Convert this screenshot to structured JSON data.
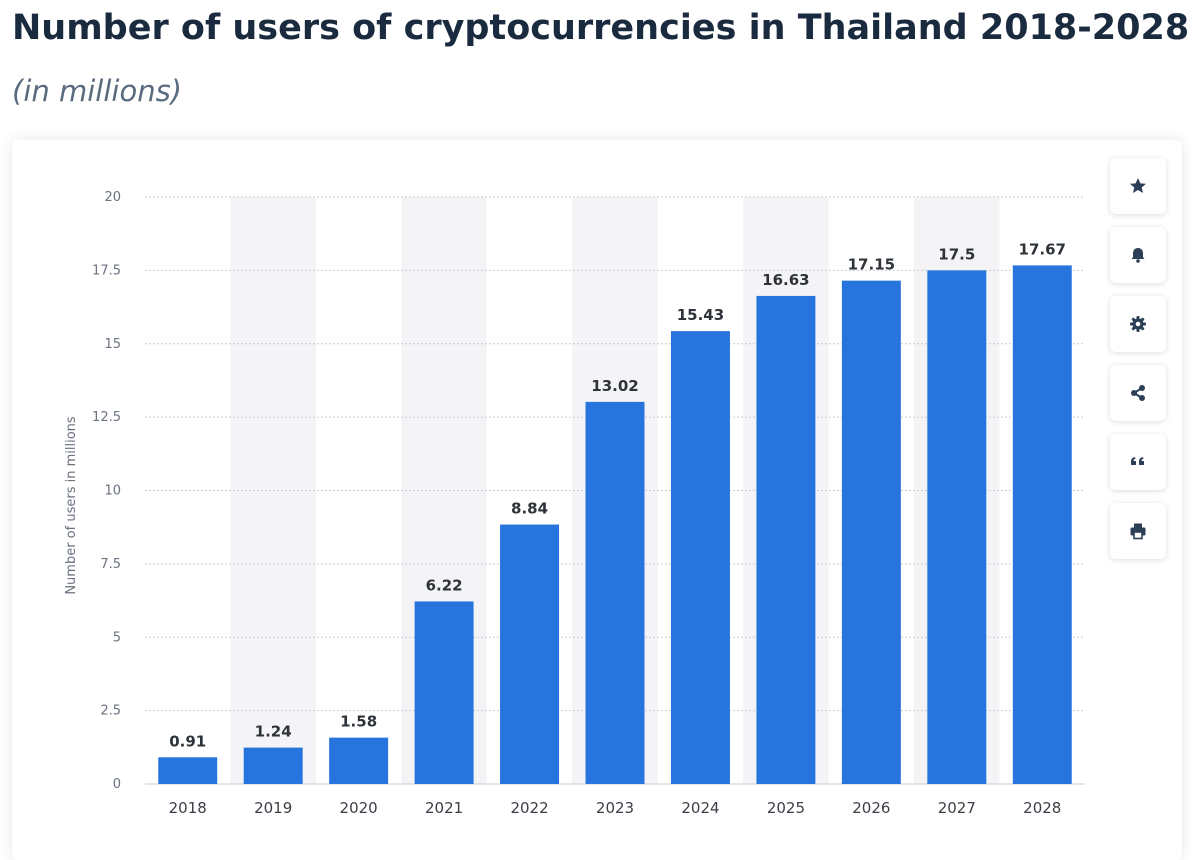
{
  "header": {
    "title": "Number of users of cryptocurrencies in Thailand 2018-2028",
    "subtitle": "(in millions)"
  },
  "toolbar": {
    "buttons": [
      {
        "name": "favorite",
        "icon": "star-icon"
      },
      {
        "name": "notify",
        "icon": "bell-icon"
      },
      {
        "name": "settings",
        "icon": "gear-icon"
      },
      {
        "name": "share",
        "icon": "share-icon"
      },
      {
        "name": "cite",
        "icon": "quote-icon"
      },
      {
        "name": "print",
        "icon": "print-icon"
      }
    ]
  },
  "colors": {
    "bar": "#2874de",
    "band": "#f4f4f6",
    "grid": "#c9ccd2",
    "icon": "#2d3f57"
  },
  "chart_data": {
    "type": "bar",
    "categories": [
      "2018",
      "2019",
      "2020",
      "2021",
      "2022",
      "2023",
      "2024",
      "2025",
      "2026",
      "2027",
      "2028"
    ],
    "values": [
      0.91,
      1.24,
      1.58,
      6.22,
      8.84,
      13.02,
      15.43,
      16.63,
      17.15,
      17.5,
      17.67
    ],
    "value_labels": [
      "0.91",
      "1.24",
      "1.58",
      "6.22",
      "8.84",
      "13.02",
      "15.43",
      "16.63",
      "17.15",
      "17.5",
      "17.67"
    ],
    "ylabel": "Number of users in millions",
    "ylim": [
      0,
      20
    ],
    "yticks": [
      0,
      2.5,
      5,
      7.5,
      10,
      12.5,
      15,
      17.5,
      20
    ],
    "ytick_labels": [
      "0",
      "2.5",
      "5",
      "7.5",
      "10",
      "12.5",
      "15",
      "17.5",
      "20"
    ],
    "grid": true,
    "alternating_bands": true
  }
}
